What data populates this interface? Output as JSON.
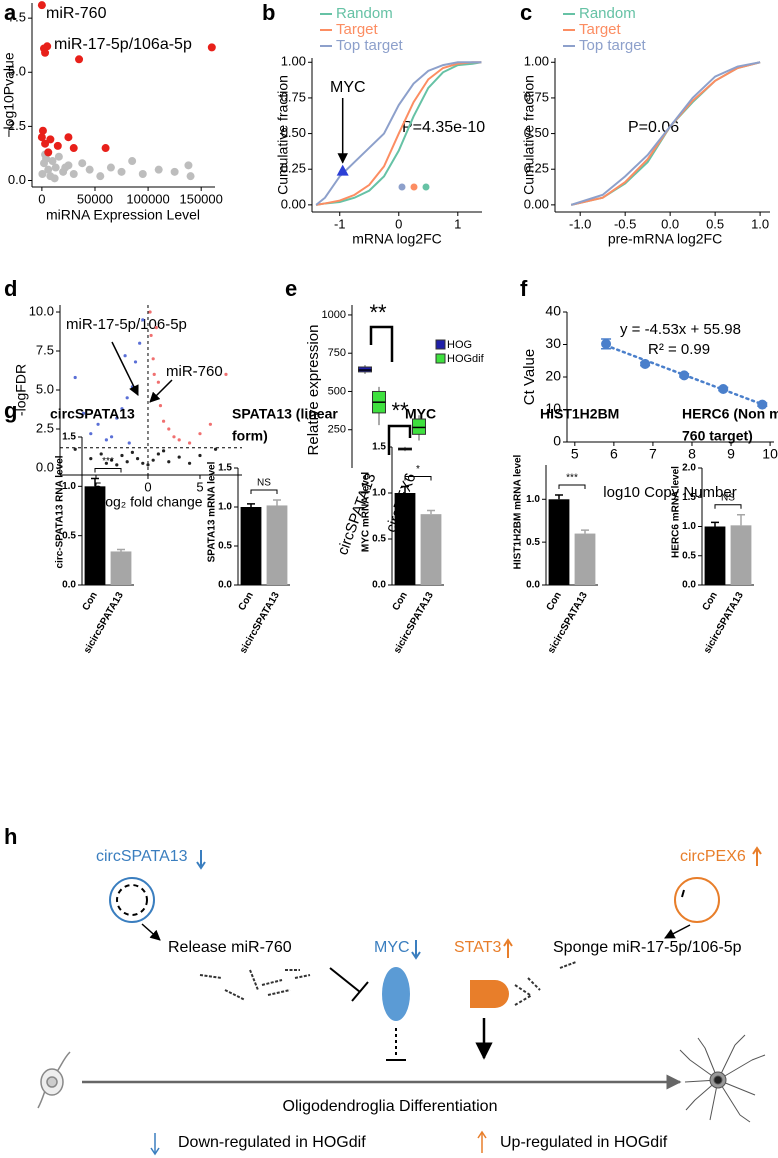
{
  "panels": [
    "a",
    "b",
    "c",
    "d",
    "e",
    "f",
    "g",
    "h"
  ],
  "chart_data": [
    {
      "type": "scatter",
      "xlabel": "miRNA Expression Level",
      "ylabel": "−log10Pvalue",
      "xlim": [
        -9300,
        163000
      ],
      "ylim": [
        -0.3,
        8.2
      ],
      "xticks": [
        0,
        50000,
        100000,
        150000
      ],
      "yticks": [
        {
          "value": 0,
          "label": "0.0"
        },
        {
          "value": 2.5,
          "label": "2.5"
        },
        {
          "value": 5,
          "label": "5.0"
        },
        {
          "value": 7.5,
          "label": "7.5"
        }
      ],
      "annotations": [
        "miR-760",
        "miR-17-5p/106a-5p"
      ],
      "series": [
        {
          "color": "#bdbdbd",
          "x": [
            500,
            2000,
            4000,
            6000,
            8000,
            10000,
            13000,
            16000,
            20000,
            25000,
            30000,
            38000,
            45000,
            55000,
            65000,
            75000,
            85000,
            95000,
            110000,
            125000,
            138000,
            140000,
            3000,
            12000,
            22000
          ],
          "values": [
            0.3,
            0.8,
            1.0,
            0.5,
            0.2,
            0.9,
            0.6,
            1.1,
            0.4,
            0.7,
            0.3,
            0.8,
            0.5,
            0.2,
            0.6,
            0.4,
            0.9,
            0.3,
            0.5,
            0.4,
            0.7,
            0.2,
            1.2,
            0.1,
            0.6
          ]
        },
        {
          "color": "#e8201a",
          "x": [
            0,
            3000,
            2000,
            5000,
            35000,
            160000,
            0,
            3000,
            8000,
            15000,
            25000,
            30000,
            60000,
            1000,
            6000
          ],
          "values": [
            8.1,
            5.9,
            6.1,
            6.2,
            5.6,
            6.15,
            2.0,
            1.7,
            1.9,
            1.6,
            2.0,
            1.5,
            1.5,
            2.3,
            1.3
          ]
        }
      ]
    },
    {
      "type": "line",
      "xlabel": "mRNA log2FC",
      "ylabel": "Cumulative fraction",
      "legend": "upper left",
      "xlim": [
        -1.47,
        1.41
      ],
      "ylim": [
        -0.05,
        1.03
      ],
      "xticks": [
        -1,
        0,
        1
      ],
      "yticks": [
        {
          "value": 0,
          "label": "0.00"
        },
        {
          "value": 0.25,
          "label": "0.25"
        },
        {
          "value": 0.5,
          "label": "0.50"
        },
        {
          "value": 0.75,
          "label": "0.75"
        },
        {
          "value": 1,
          "label": "1.00"
        }
      ],
      "annotations": [
        "MYC",
        "P=4.35e-10"
      ],
      "highlight": {
        "x": -0.95,
        "value": 0.24
      },
      "series": [
        {
          "name": "Random",
          "color": "#66c2a5",
          "x": [
            -1.4,
            -1.25,
            -1,
            -0.75,
            -0.5,
            -0.25,
            0,
            0.25,
            0.5,
            0.75,
            1,
            1.25,
            1.4
          ],
          "values": [
            0,
            0.01,
            0.02,
            0.05,
            0.1,
            0.2,
            0.38,
            0.62,
            0.82,
            0.93,
            0.98,
            0.99,
            1.0
          ]
        },
        {
          "name": "Target",
          "color": "#fc8d62",
          "x": [
            -1.4,
            -1.25,
            -1,
            -0.75,
            -0.5,
            -0.25,
            0,
            0.25,
            0.5,
            0.75,
            1,
            1.25,
            1.4
          ],
          "values": [
            0,
            0.01,
            0.03,
            0.07,
            0.14,
            0.27,
            0.5,
            0.72,
            0.88,
            0.96,
            0.99,
            1,
            1
          ]
        },
        {
          "name": "Top target",
          "color": "#8da0cb",
          "x": [
            -1.4,
            -1.25,
            -1,
            -0.75,
            -0.5,
            -0.25,
            0,
            0.25,
            0.5,
            0.75,
            1,
            1.25,
            1.4
          ],
          "values": [
            0,
            0.05,
            0.2,
            0.3,
            0.4,
            0.5,
            0.7,
            0.85,
            0.94,
            0.98,
            1,
            1,
            1
          ]
        }
      ]
    },
    {
      "type": "line",
      "xlabel": "pre-mRNA log2FC",
      "ylabel": "Cumulative fraction",
      "legend": "upper left",
      "xlim": [
        -1.28,
        1.11
      ],
      "ylim": [
        -0.05,
        1.03
      ],
      "xticks": [
        {
          "value": -1,
          "label": "-1.0"
        },
        {
          "value": -0.5,
          "label": "-0.5"
        },
        {
          "value": 0,
          "label": "0.0"
        },
        {
          "value": 0.5,
          "label": "0.5"
        },
        {
          "value": 1,
          "label": "1.0"
        }
      ],
      "yticks": [
        {
          "value": 0,
          "label": "0.00"
        },
        {
          "value": 0.25,
          "label": "0.25"
        },
        {
          "value": 0.5,
          "label": "0.50"
        },
        {
          "value": 0.75,
          "label": "0.75"
        },
        {
          "value": 1,
          "label": "1.00"
        }
      ],
      "annotations": [
        "P=0.06"
      ],
      "series": [
        {
          "name": "Random",
          "color": "#66c2a5",
          "x": [
            -1.1,
            -0.75,
            -0.5,
            -0.25,
            0,
            0.25,
            0.5,
            0.75,
            1.0
          ],
          "values": [
            0,
            0.05,
            0.15,
            0.3,
            0.55,
            0.72,
            0.87,
            0.96,
            1
          ]
        },
        {
          "name": "Target",
          "color": "#fc8d62",
          "x": [
            -1.1,
            -0.75,
            -0.5,
            -0.25,
            0,
            0.25,
            0.5,
            0.75,
            1.0
          ],
          "values": [
            0,
            0.05,
            0.16,
            0.32,
            0.55,
            0.73,
            0.87,
            0.96,
            1
          ]
        },
        {
          "name": "Top target",
          "color": "#8da0cb",
          "x": [
            -1.1,
            -0.75,
            -0.5,
            -0.25,
            0,
            0.25,
            0.5,
            0.75,
            1.0
          ],
          "values": [
            0,
            0.07,
            0.2,
            0.35,
            0.55,
            0.75,
            0.9,
            0.97,
            1
          ]
        }
      ]
    },
    {
      "type": "scatter",
      "xlabel": "Log₂ fold change",
      "ylabel": "-logFDR",
      "xlim": [
        -8.46,
        9.04
      ],
      "ylim": [
        -0.45,
        10.45
      ],
      "xticks": [
        -5,
        0,
        5
      ],
      "yticks": [
        {
          "value": 0,
          "label": "0.0"
        },
        {
          "value": 2.5,
          "label": "2.5"
        },
        {
          "value": 5,
          "label": "5.0"
        },
        {
          "value": 7.5,
          "label": "7.5"
        },
        {
          "value": 10,
          "label": "10.0"
        }
      ],
      "hline": 1.3,
      "vline": 0,
      "annotations": [
        "miR-17-5p/106-5p",
        "miR-760"
      ],
      "series": [
        {
          "color": "#222222",
          "x": [
            -7,
            -5.5,
            -4.5,
            -4,
            -3.5,
            -3,
            -2.5,
            -2,
            -1.5,
            -1,
            -0.5,
            0,
            0.5,
            1,
            1.5,
            2,
            3,
            4,
            5,
            6.5
          ],
          "values": [
            1.2,
            0.6,
            0.9,
            0.3,
            0.5,
            0.2,
            0.8,
            0.4,
            1.0,
            0.6,
            0.3,
            0.2,
            0.5,
            0.9,
            1.1,
            0.4,
            0.7,
            0.3,
            0.8,
            1.2
          ]
        },
        {
          "color": "#5a6fd6",
          "x": [
            -7,
            -6.2,
            -5.5,
            -4.8,
            -4,
            -3.5,
            -3,
            -2.5,
            -2,
            -1.5,
            -1.2,
            -0.8,
            -0.5,
            -2.2,
            -1.8
          ],
          "values": [
            5.8,
            3.5,
            2.2,
            2.8,
            1.8,
            2.0,
            3.2,
            3.8,
            4.5,
            5.2,
            6.8,
            8.0,
            9.5,
            7.2,
            1.6
          ]
        },
        {
          "color": "#f07070",
          "x": [
            0.2,
            0.3,
            0.5,
            0.6,
            0.8,
            1,
            1.2,
            1.5,
            2,
            2.5,
            3,
            4,
            5,
            6,
            7.5
          ],
          "values": [
            10,
            8.5,
            7,
            6,
            9,
            5.5,
            4,
            3,
            2.5,
            2,
            1.8,
            1.6,
            2.2,
            2.8,
            6
          ]
        }
      ]
    },
    {
      "type": "box",
      "ylabel": "Relative expression",
      "legend": "right",
      "ylim": [
        0,
        1065
      ],
      "yticks": [
        250,
        500,
        750,
        1000
      ],
      "categories": [
        "circSPATA13",
        "circPEX6"
      ],
      "annotations": [
        "**",
        "**"
      ],
      "series": [
        {
          "name": "HOG",
          "color": "#1f1fa8",
          "min": [
            615,
            110
          ],
          "q1": [
            628,
            118
          ],
          "median": [
            640,
            124
          ],
          "q3": [
            660,
            130
          ],
          "max": [
            672,
            138
          ]
        },
        {
          "name": "HOGdif",
          "color": "#3ee03e",
          "min": [
            280,
            180
          ],
          "q1": [
            360,
            220
          ],
          "median": [
            430,
            265
          ],
          "q3": [
            500,
            320
          ],
          "max": [
            530,
            345
          ]
        }
      ]
    },
    {
      "type": "scatter",
      "xlabel": "log10 Copy Number",
      "ylabel": "Ct Value",
      "xlim": [
        4.8,
        10.1
      ],
      "ylim": [
        0,
        40
      ],
      "xticks": [
        5,
        6,
        7,
        8,
        9,
        10
      ],
      "yticks": [
        0,
        10,
        20,
        30,
        40
      ],
      "annotations": [
        "y = -4.53x + 55.98",
        "R² = 0.99"
      ],
      "trendline": {
        "slope": -4.53,
        "intercept": 55.98,
        "color": "#4a7fcb"
      },
      "series": [
        {
          "color": "#4a7fcb",
          "x": [
            5.8,
            6.8,
            7.8,
            8.8,
            9.8
          ],
          "values": [
            30.2,
            24,
            20.5,
            16.3,
            11.5
          ],
          "errors": [
            1.5,
            0.5,
            0.5,
            0.5,
            0.5
          ]
        }
      ]
    },
    {
      "type": "bar",
      "title": [
        "circSPATA13"
      ],
      "ylabel": "circ-SPATA13 RNA level",
      "categories": [
        "Con",
        "sicircSPATA13"
      ],
      "colors": [
        "#000000",
        "#a6a6a6"
      ],
      "values": [
        1.0,
        0.34
      ],
      "errors": [
        0.08,
        0.02
      ],
      "significance": "***",
      "ylim": [
        0,
        1.5
      ],
      "yticks": [
        {
          "value": 0,
          "label": "0.0"
        },
        {
          "value": 0.5,
          "label": "0.5"
        },
        {
          "value": 1,
          "label": "1.0"
        },
        {
          "value": 1.5,
          "label": "1.5"
        }
      ]
    },
    {
      "type": "bar",
      "title": [
        "SPATA13 (linear",
        "form)"
      ],
      "ylabel": "SPATA13 mRNA level",
      "categories": [
        "Con",
        "sicircSPATA13"
      ],
      "colors": [
        "#000000",
        "#a6a6a6"
      ],
      "values": [
        1.0,
        1.02
      ],
      "errors": [
        0.04,
        0.07
      ],
      "significance": "NS",
      "ylim": [
        0,
        1.5
      ],
      "yticks": [
        {
          "value": 0,
          "label": "0.0"
        },
        {
          "value": 0.5,
          "label": "0.5"
        },
        {
          "value": 1,
          "label": "1.0"
        },
        {
          "value": 1.5,
          "label": "1.5"
        }
      ]
    },
    {
      "type": "bar",
      "title": [
        "MYC"
      ],
      "ylabel": "MYC mRNA level",
      "categories": [
        "Con",
        "sicircSPATA13"
      ],
      "colors": [
        "#000000",
        "#a6a6a6"
      ],
      "values": [
        1.0,
        0.77
      ],
      "errors": [
        0.07,
        0.04
      ],
      "significance": "*",
      "ylim": [
        0,
        1.5
      ],
      "yticks": [
        {
          "value": 0,
          "label": "0.0"
        },
        {
          "value": 0.5,
          "label": "0.5"
        },
        {
          "value": 1,
          "label": "1.0"
        },
        {
          "value": 1.5,
          "label": "1.5"
        }
      ]
    },
    {
      "type": "bar",
      "title": [
        "HIST1H2BM"
      ],
      "ylabel": "HIST1H2BM mRNA level",
      "categories": [
        "Con",
        "sicircSPATA13"
      ],
      "colors": [
        "#000000",
        "#a6a6a6"
      ],
      "values": [
        1.0,
        0.6
      ],
      "errors": [
        0.05,
        0.04
      ],
      "significance": "***",
      "ylim": [
        0,
        1.4
      ],
      "yticks": [
        {
          "value": 0,
          "label": "0.0"
        },
        {
          "value": 0.5,
          "label": "0.5"
        },
        {
          "value": 1,
          "label": "1.0"
        }
      ]
    },
    {
      "type": "bar",
      "title": [
        "HERC6 (Non miR-",
        "760 target)"
      ],
      "ylabel": "HERC6 mRNA level",
      "categories": [
        "Con",
        "sicircSPATA13"
      ],
      "colors": [
        "#000000",
        "#a6a6a6"
      ],
      "values": [
        1.0,
        1.02
      ],
      "errors": [
        0.07,
        0.18
      ],
      "significance": "NS",
      "ylim": [
        0,
        2
      ],
      "yticks": [
        {
          "value": 0,
          "label": "0.0"
        },
        {
          "value": 0.5,
          "label": "0.5"
        },
        {
          "value": 1,
          "label": "1.0"
        },
        {
          "value": 1.5,
          "label": "1.5"
        },
        {
          "value": 2,
          "label": "2.0"
        }
      ]
    }
  ],
  "diagram": {
    "circ_spata13": "circSPATA13",
    "release": "Release miR-760",
    "myc": "MYC",
    "stat3": "STAT3",
    "circ_pex6": "circPEX6",
    "sponge": "Sponge miR-17-5p/106-5p",
    "process": "Oligodendroglia Differentiation",
    "legend_down": "Down-regulated in HOGdif",
    "legend_up": "Up-regulated in HOGdif"
  }
}
